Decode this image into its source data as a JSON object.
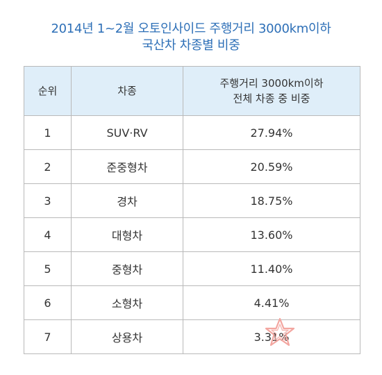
{
  "title": {
    "line1": "2014년 1~2월 오토인사이드 주행거리 3000km이하",
    "line2": "국산차 차종별 비중"
  },
  "table": {
    "headers": {
      "rank": "순위",
      "type": "차종",
      "share_line1": "주행거리 3000km이하",
      "share_line2": "전체 차종 중 비중"
    },
    "rows": [
      {
        "rank": "1",
        "type": "SUV·RV",
        "share": "27.94%"
      },
      {
        "rank": "2",
        "type": "준중형차",
        "share": "20.59%"
      },
      {
        "rank": "3",
        "type": "경차",
        "share": "18.75%"
      },
      {
        "rank": "4",
        "type": "대형차",
        "share": "13.60%"
      },
      {
        "rank": "5",
        "type": "중형차",
        "share": "11.40%"
      },
      {
        "rank": "6",
        "type": "소형차",
        "share": "4.41%"
      },
      {
        "rank": "7",
        "type": "상용차",
        "share": "3.31%"
      }
    ]
  },
  "colors": {
    "title": "#2d6fb7",
    "header_bg": "#dfeef9",
    "border": "#b9b9b9",
    "watermark": "#f3a6a0"
  },
  "icons": {
    "watermark": "star-logo-icon"
  }
}
